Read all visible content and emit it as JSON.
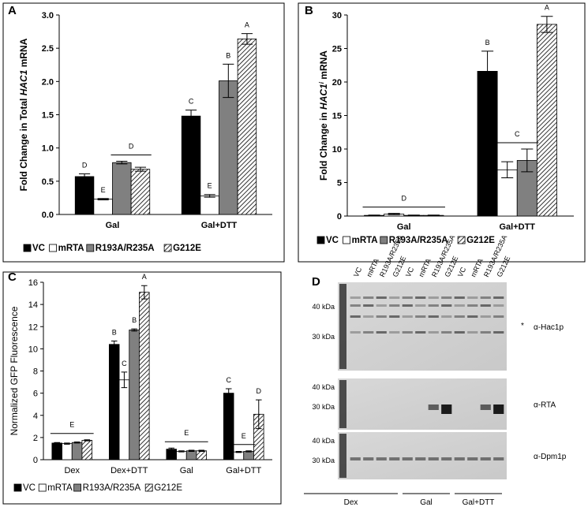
{
  "chart_data": [
    {
      "type": "bar",
      "panel": "A",
      "ylabel": [
        {
          "text": "Fold Change in Total ",
          "style": "normal"
        },
        {
          "text": "HAC1",
          "style": "italic"
        },
        {
          "text": " mRNA",
          "style": "normal"
        }
      ],
      "categories": [
        "Gal",
        "Gal+DTT"
      ],
      "series": [
        {
          "name": "VC",
          "color": "#000000",
          "values": [
            0.57,
            1.48
          ],
          "errors": [
            0.04,
            0.09
          ]
        },
        {
          "name": "mRTA",
          "color": "#ffffff",
          "values": [
            0.23,
            0.28
          ],
          "errors": [
            0.01,
            0.02
          ]
        },
        {
          "name": "R193A/R235A",
          "color": "#808080",
          "values": [
            0.78,
            2.01
          ],
          "errors": [
            0.02,
            0.25
          ]
        },
        {
          "name": "G212E",
          "color": "#000000",
          "pattern": "hatch",
          "values": [
            0.68,
            2.64
          ],
          "errors": [
            0.03,
            0.08
          ]
        }
      ],
      "ylim": [
        0,
        3
      ],
      "yticks": [
        {
          "value": 0,
          "label": "0.0"
        },
        {
          "value": 0.5,
          "label": "0.5"
        },
        {
          "value": 1,
          "label": "1.0"
        },
        {
          "value": 1.5,
          "label": "1.5"
        },
        {
          "value": 2,
          "label": "2.0"
        },
        {
          "value": 2.5,
          "label": "2.5"
        },
        {
          "value": 3,
          "label": "3.0"
        }
      ],
      "annotations": [
        {
          "text": "D",
          "category": 0,
          "series": [
            0
          ]
        },
        {
          "text": "E",
          "category": 0,
          "series": [
            1
          ]
        },
        {
          "text": "D",
          "category": 0,
          "series": [
            2,
            3
          ]
        },
        {
          "text": "C",
          "category": 1,
          "series": [
            0
          ]
        },
        {
          "text": "E",
          "category": 1,
          "series": [
            1
          ]
        },
        {
          "text": "B",
          "category": 1,
          "series": [
            2
          ]
        },
        {
          "text": "A",
          "category": 1,
          "series": [
            3
          ]
        }
      ]
    },
    {
      "type": "bar",
      "panel": "B",
      "ylabel": [
        {
          "text": "Fold Change in ",
          "style": "normal"
        },
        {
          "text": "HAC1",
          "style": "italic"
        },
        {
          "text": "i",
          "style": "italic-sup"
        },
        {
          "text": " mRNA",
          "style": "normal"
        }
      ],
      "categories": [
        "Gal",
        "Gal+DTT"
      ],
      "series": [
        {
          "name": "VC",
          "color": "#000000",
          "values": [
            0.1,
            21.6
          ],
          "errors": [
            0.05,
            3
          ]
        },
        {
          "name": "mRTA",
          "color": "#ffffff",
          "values": [
            0.3,
            6.9
          ],
          "errors": [
            0.1,
            1.2
          ]
        },
        {
          "name": "R193A/R235A",
          "color": "#808080",
          "values": [
            0.1,
            8.3
          ],
          "errors": [
            0.05,
            1.7
          ]
        },
        {
          "name": "G212E",
          "color": "#000000",
          "pattern": "hatch",
          "values": [
            0.1,
            28.6
          ],
          "errors": [
            0.05,
            1.2
          ]
        }
      ],
      "ylim": [
        0,
        30
      ],
      "yticks": [
        0,
        5,
        10,
        15,
        20,
        25,
        30
      ],
      "annotations": [
        {
          "text": "D",
          "category": 0,
          "series": [
            0,
            1,
            2,
            3
          ]
        },
        {
          "text": "B",
          "category": 1,
          "series": [
            0
          ]
        },
        {
          "text": "C",
          "category": 1,
          "series": [
            1,
            2
          ]
        },
        {
          "text": "A",
          "category": 1,
          "series": [
            3
          ]
        }
      ]
    },
    {
      "type": "bar",
      "panel": "C",
      "ylabel": [
        {
          "text": "Normalized GFP Fluorescence",
          "style": "normal"
        }
      ],
      "categories": [
        "Dex",
        "Dex+DTT",
        "Gal",
        "Gal+DTT"
      ],
      "series": [
        {
          "name": "VC",
          "color": "#000000",
          "values": [
            1.5,
            10.4,
            0.95,
            6.0
          ],
          "errors": [
            0.05,
            0.3,
            0.1,
            0.4
          ]
        },
        {
          "name": "mRTA",
          "color": "#ffffff",
          "values": [
            1.45,
            7.2,
            0.75,
            0.7
          ],
          "errors": [
            0.05,
            0.7,
            0.05,
            0.05
          ]
        },
        {
          "name": "R193A/R235A",
          "color": "#808080",
          "values": [
            1.55,
            11.7,
            0.8,
            0.75
          ],
          "errors": [
            0.05,
            0.1,
            0.05,
            0.05
          ]
        },
        {
          "name": "G212E",
          "color": "#000000",
          "pattern": "hatch",
          "values": [
            1.75,
            15.1,
            0.8,
            4.1
          ],
          "errors": [
            0.05,
            0.6,
            0.05,
            1.3
          ]
        }
      ],
      "ylim": [
        0,
        16
      ],
      "yticks": [
        0,
        2,
        4,
        6,
        8,
        10,
        12,
        14,
        16
      ],
      "annotations": [
        {
          "text": "E",
          "category": 0,
          "series": [
            0,
            1,
            2,
            3
          ]
        },
        {
          "text": "B",
          "category": 1,
          "series": [
            0
          ]
        },
        {
          "text": "C",
          "category": 1,
          "series": [
            1
          ]
        },
        {
          "text": "B",
          "category": 1,
          "series": [
            2
          ]
        },
        {
          "text": "A",
          "category": 1,
          "series": [
            3
          ]
        },
        {
          "text": "E",
          "category": 2,
          "series": [
            0,
            1,
            2,
            3
          ]
        },
        {
          "text": "C",
          "category": 3,
          "series": [
            0
          ]
        },
        {
          "text": "E",
          "category": 3,
          "series": [
            1,
            2
          ]
        },
        {
          "text": "D",
          "category": 3,
          "series": [
            3
          ]
        }
      ]
    }
  ],
  "blot": {
    "panel": "D",
    "lanes": [
      "VC",
      "mRTA",
      "R193A/R235A",
      "G212E",
      "VC",
      "mRTA",
      "R193A/R235A",
      "G212E",
      "VC",
      "mRTA",
      "R193A/R235A",
      "G212E"
    ],
    "groups": [
      "Dex",
      "Gal",
      "Gal+DTT"
    ],
    "blots": [
      {
        "markers": [
          "40 kDa",
          "30 kDa"
        ],
        "antibody": "α-Hac1p",
        "note": "*"
      },
      {
        "markers": [
          "40 kDa",
          "30 kDa"
        ],
        "antibody": "α-RTA"
      },
      {
        "markers": [
          "40 kDa",
          "30 kDa"
        ],
        "antibody": "α-Dpm1p"
      }
    ]
  }
}
